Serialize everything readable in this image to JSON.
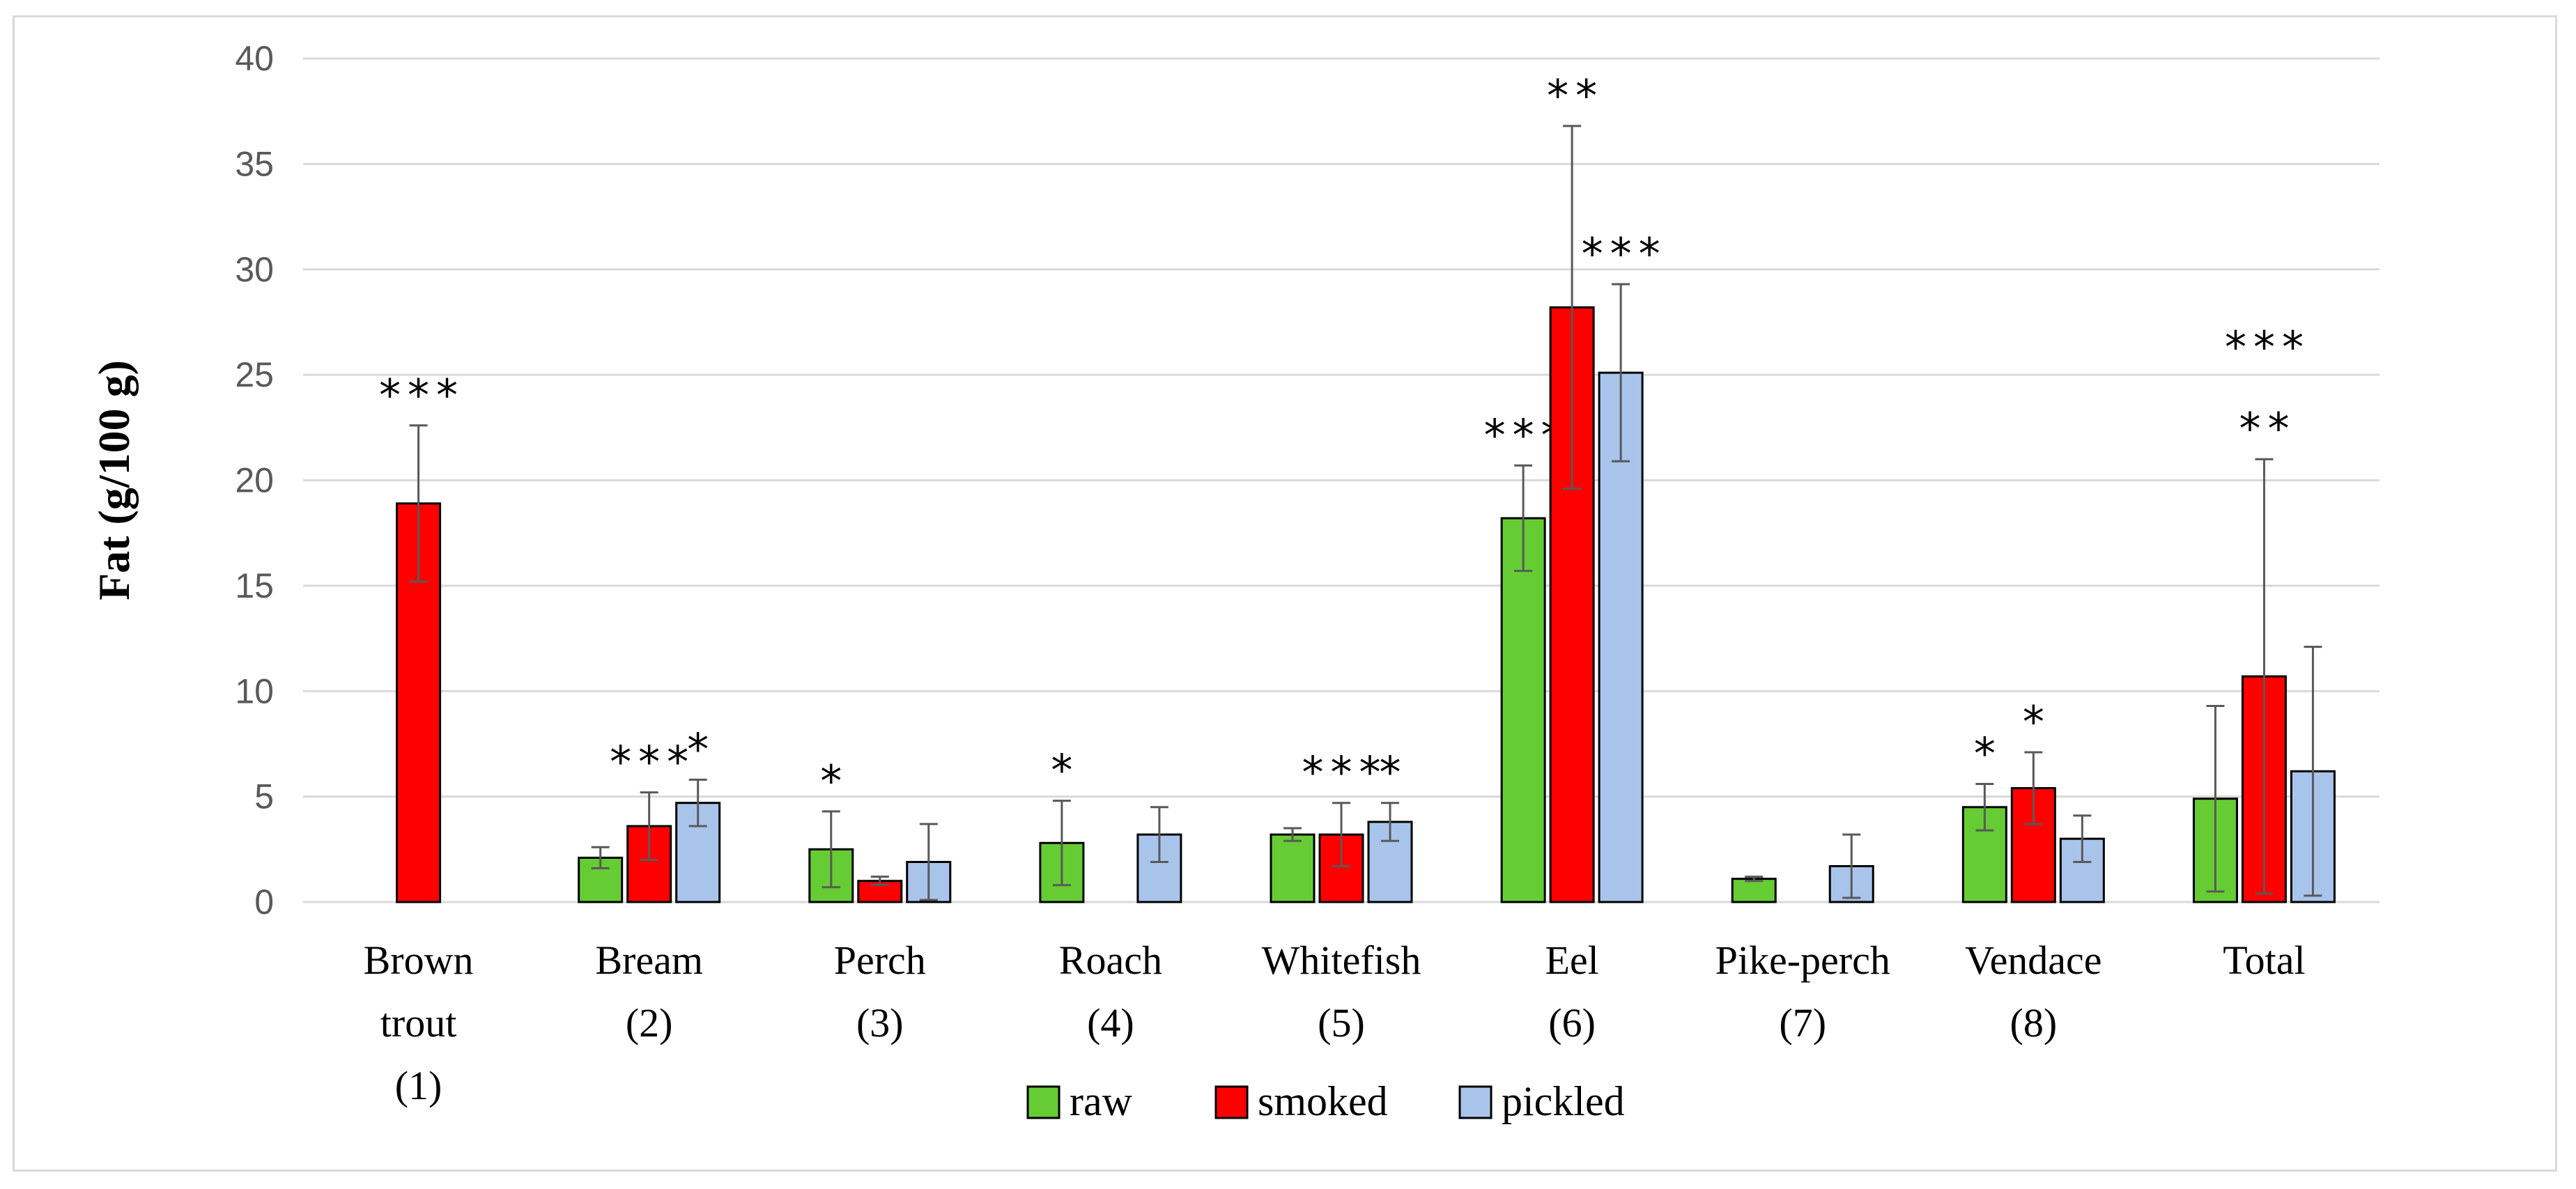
{
  "chart_data": {
    "type": "bar",
    "title": "",
    "xlabel": "",
    "ylabel": "Fat (g/100 g)",
    "ylim": [
      0,
      40
    ],
    "yticks": [
      0,
      5,
      10,
      15,
      20,
      25,
      30,
      35,
      40
    ],
    "grid": true,
    "legend_position": "bottom",
    "categories": [
      [
        "Brown",
        "trout",
        "(1)"
      ],
      [
        "Bream",
        "(2)"
      ],
      [
        "Perch",
        "(3)"
      ],
      [
        "Roach",
        "(4)"
      ],
      [
        "Whitefish",
        "(5)"
      ],
      [
        "Eel",
        "(6)"
      ],
      [
        "Pike-perch",
        "(7)"
      ],
      [
        "Vendace",
        "(8)"
      ],
      [
        "Total"
      ]
    ],
    "series": [
      {
        "name": "raw",
        "color": "#66cc33",
        "values": [
          null,
          2.1,
          2.5,
          2.8,
          3.2,
          18.2,
          1.1,
          4.5,
          4.9
        ],
        "errors": [
          null,
          0.5,
          1.8,
          2.0,
          0.3,
          2.5,
          0.1,
          1.1,
          4.4
        ],
        "significance": [
          "",
          "",
          "*",
          "*",
          "",
          "***",
          "",
          "*",
          ""
        ]
      },
      {
        "name": "smoked",
        "color": "#ff0000",
        "values": [
          18.9,
          3.6,
          1.0,
          null,
          3.2,
          28.2,
          null,
          5.4,
          10.7
        ],
        "errors": [
          3.7,
          1.6,
          0.2,
          null,
          1.5,
          8.6,
          null,
          1.7,
          10.3
        ],
        "significance": [
          "***",
          "***",
          "",
          "",
          "***",
          "**",
          "",
          "*",
          "**"
        ]
      },
      {
        "name": "pickled",
        "color": "#a9c4eb",
        "values": [
          null,
          4.7,
          1.9,
          3.2,
          3.8,
          25.1,
          1.7,
          3.0,
          6.2
        ],
        "errors": [
          null,
          1.1,
          1.8,
          1.3,
          0.9,
          4.2,
          1.5,
          1.1,
          5.9
        ],
        "significance": [
          "",
          "*",
          "",
          "",
          "*",
          "***",
          "",
          "",
          ""
        ]
      }
    ],
    "extra_annotations": [
      {
        "category_index": 8,
        "text": "***"
      }
    ]
  }
}
